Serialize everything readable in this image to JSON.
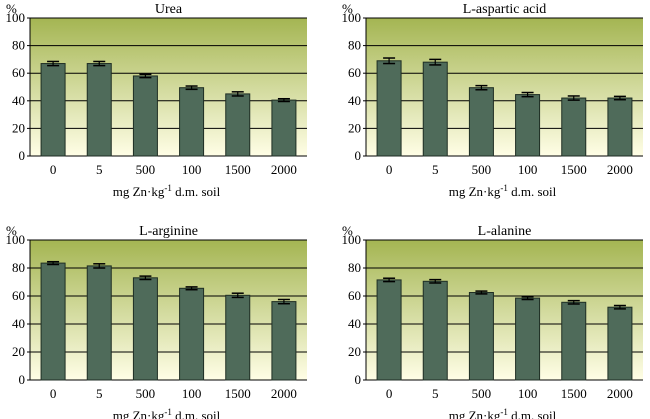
{
  "figure": {
    "colors": {
      "bar_fill": "#4f6b5a",
      "bar_stroke": "#1f2e24",
      "gradient_top": "#a4b552",
      "gradient_bottom": "#fffee6",
      "gridline": "#000000"
    }
  },
  "chart_data": [
    {
      "type": "bar",
      "title": "Urea",
      "ylabel": "%",
      "xlabel": "mg Zn·kg",
      "xlabel_sup": "-1",
      "xlabel_suffix": " d.m. soil",
      "categories": [
        "0",
        "5",
        "500",
        "100",
        "1500",
        "2000"
      ],
      "values": [
        67,
        67,
        58,
        49.5,
        45,
        40.5
      ],
      "errors": [
        1.5,
        1.5,
        1.2,
        1.2,
        1.5,
        1.0
      ],
      "ylim": [
        0,
        100
      ],
      "yticks": [
        0,
        20,
        40,
        60,
        80,
        100
      ],
      "grid": true
    },
    {
      "type": "bar",
      "title": "L-aspartic acid",
      "ylabel": "%",
      "xlabel": "mg Zn·kg",
      "xlabel_sup": "-1",
      "xlabel_suffix": " d.m. soil",
      "categories": [
        "0",
        "5",
        "500",
        "100",
        "1500",
        "2000"
      ],
      "values": [
        69,
        68,
        49.5,
        44.5,
        42,
        42
      ],
      "errors": [
        2.0,
        2.0,
        1.5,
        1.5,
        1.5,
        1.2
      ],
      "ylim": [
        0,
        100
      ],
      "yticks": [
        0,
        20,
        40,
        60,
        80,
        100
      ],
      "grid": true
    },
    {
      "type": "bar",
      "title": "L-arginine",
      "ylabel": "%",
      "xlabel": "mg Zn·kg",
      "xlabel_sup": "-1",
      "xlabel_suffix": " d.m. soil",
      "categories": [
        "0",
        "5",
        "500",
        "100",
        "1500",
        "2000"
      ],
      "values": [
        83.5,
        81.5,
        73,
        65.5,
        60.5,
        56
      ],
      "errors": [
        1.0,
        1.5,
        1.2,
        1.0,
        1.5,
        1.5
      ],
      "ylim": [
        0,
        100
      ],
      "yticks": [
        0,
        20,
        40,
        60,
        80,
        100
      ],
      "grid": true
    },
    {
      "type": "bar",
      "title": "L-alanine",
      "ylabel": "%",
      "xlabel": "mg Zn·kg",
      "xlabel_sup": "-1",
      "xlabel_suffix": " d.m. soil",
      "categories": [
        "0",
        "5",
        "500",
        "100",
        "1500",
        "2000"
      ],
      "values": [
        71.5,
        70.5,
        62.5,
        58.5,
        55.5,
        52
      ],
      "errors": [
        1.2,
        1.2,
        1.0,
        1.0,
        1.2,
        1.2
      ],
      "ylim": [
        0,
        100
      ],
      "yticks": [
        0,
        20,
        40,
        60,
        80,
        100
      ],
      "grid": true
    }
  ]
}
